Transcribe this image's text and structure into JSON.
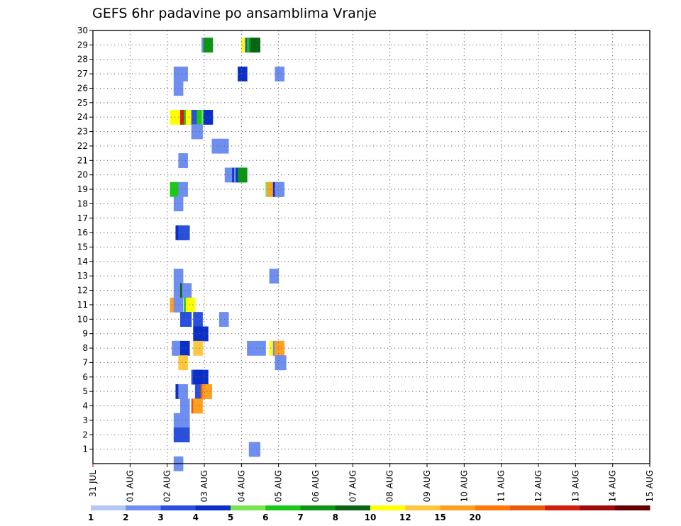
{
  "chart_data": {
    "type": "heatmap",
    "title": "GEFS 6hr padavine po ansamblima Vranje",
    "x_tick_labels": [
      "31 JUL",
      "01 AUG",
      "02 AUG",
      "03 AUG",
      "04 AUG",
      "05 AUG",
      "06 AUG",
      "07 AUG",
      "08 AUG",
      "09 AUG",
      "10 AUG",
      "11 AUG",
      "12 AUG",
      "13 AUG",
      "14 AUG",
      "15 AUG"
    ],
    "y_tick_labels": [
      "1",
      "2",
      "3",
      "4",
      "5",
      "6",
      "7",
      "8",
      "9",
      "10",
      "11",
      "12",
      "13",
      "14",
      "15",
      "16",
      "17",
      "18",
      "19",
      "20",
      "21",
      "22",
      "23",
      "24",
      "25",
      "26",
      "27",
      "28",
      "29",
      "30"
    ],
    "ylim": [
      0,
      30
    ],
    "grid": true,
    "colorbar": {
      "colors": [
        "#b4c8f5",
        "#6e8ef0",
        "#2850dc",
        "#0a2fc8",
        "#78e650",
        "#19c819",
        "#0a9610",
        "#0a6414",
        "#ffff00",
        "#ffc83c",
        "#ffa01e",
        "#ff780a",
        "#eb5a0a",
        "#d21e0a",
        "#a00a0a",
        "#640000"
      ],
      "labels": [
        "1",
        "2",
        "3",
        "4",
        "5",
        "6",
        "7",
        "8",
        "10",
        "12",
        "15",
        "20"
      ],
      "label_bins": [
        0,
        1,
        2,
        3,
        4,
        5,
        6,
        7,
        8,
        9,
        10,
        11
      ]
    },
    "cells": [
      [
        11.7,
        29,
        1
      ],
      [
        11.9,
        29,
        6
      ],
      [
        16.0,
        29,
        8
      ],
      [
        16.4,
        29,
        2
      ],
      [
        16.6,
        29,
        5
      ],
      [
        16.8,
        29,
        6
      ],
      [
        17.0,
        29,
        7
      ],
      [
        8.7,
        27,
        1
      ],
      [
        9.2,
        27,
        1
      ],
      [
        15.6,
        27,
        3
      ],
      [
        19.6,
        27,
        1
      ],
      [
        8.7,
        26,
        1
      ],
      [
        8.3,
        24,
        8
      ],
      [
        9.2,
        24,
        8
      ],
      [
        9.4,
        24,
        13
      ],
      [
        9.8,
        24,
        5
      ],
      [
        10.0,
        24,
        8
      ],
      [
        10.6,
        24,
        2
      ],
      [
        10.8,
        24,
        2
      ],
      [
        11.2,
        24,
        5
      ],
      [
        11.7,
        24,
        4
      ],
      [
        11.9,
        24,
        3
      ],
      [
        10.6,
        23,
        1
      ],
      [
        10.8,
        23,
        1
      ],
      [
        12.8,
        22,
        1
      ],
      [
        13.6,
        22,
        1
      ],
      [
        9.2,
        21,
        1
      ],
      [
        14.2,
        20,
        1
      ],
      [
        15.0,
        20,
        3
      ],
      [
        15.2,
        20,
        1
      ],
      [
        15.4,
        20,
        3
      ],
      [
        15.6,
        20,
        6
      ],
      [
        8.3,
        19,
        5
      ],
      [
        9.2,
        19,
        1
      ],
      [
        18.6,
        19,
        4
      ],
      [
        18.8,
        19,
        10
      ],
      [
        19.4,
        19,
        3
      ],
      [
        19.6,
        19,
        1
      ],
      [
        8.7,
        18,
        1
      ],
      [
        8.9,
        16,
        3
      ],
      [
        9.2,
        16,
        2
      ],
      [
        9.4,
        16,
        2
      ],
      [
        8.7,
        13,
        1
      ],
      [
        19.0,
        13,
        1
      ],
      [
        8.7,
        12,
        1
      ],
      [
        9.2,
        12,
        1
      ],
      [
        9.4,
        12,
        7
      ],
      [
        9.6,
        12,
        1
      ],
      [
        8.3,
        11,
        10
      ],
      [
        8.7,
        11,
        1
      ],
      [
        9.8,
        11,
        5
      ],
      [
        10.0,
        11,
        8
      ],
      [
        9.4,
        10,
        2
      ],
      [
        9.6,
        10,
        2
      ],
      [
        10.8,
        10,
        2
      ],
      [
        13.6,
        10,
        1
      ],
      [
        10.8,
        9,
        3
      ],
      [
        11.4,
        9,
        3
      ],
      [
        8.5,
        8,
        1
      ],
      [
        8.7,
        8,
        1
      ],
      [
        9.4,
        8,
        3
      ],
      [
        10.8,
        8,
        9
      ],
      [
        16.6,
        8,
        1
      ],
      [
        17.6,
        8,
        1
      ],
      [
        19.0,
        8,
        8
      ],
      [
        19.4,
        8,
        1
      ],
      [
        19.6,
        8,
        10
      ],
      [
        9.2,
        7,
        9
      ],
      [
        19.6,
        7,
        1
      ],
      [
        19.8,
        7,
        1
      ],
      [
        10.6,
        6,
        2
      ],
      [
        10.8,
        6,
        3
      ],
      [
        11.4,
        6,
        3
      ],
      [
        8.9,
        5,
        3
      ],
      [
        9.2,
        5,
        1
      ],
      [
        11.0,
        5,
        2
      ],
      [
        11.6,
        5,
        12
      ],
      [
        11.8,
        5,
        10
      ],
      [
        9.4,
        4,
        1
      ],
      [
        10.6,
        4,
        12
      ],
      [
        10.8,
        4,
        10
      ],
      [
        8.7,
        3,
        1
      ],
      [
        9.4,
        3,
        1
      ],
      [
        8.7,
        2,
        2
      ],
      [
        9.4,
        2,
        2
      ],
      [
        16.8,
        1,
        1
      ],
      [
        17.0,
        1,
        1
      ],
      [
        8.7,
        0,
        1
      ]
    ]
  }
}
